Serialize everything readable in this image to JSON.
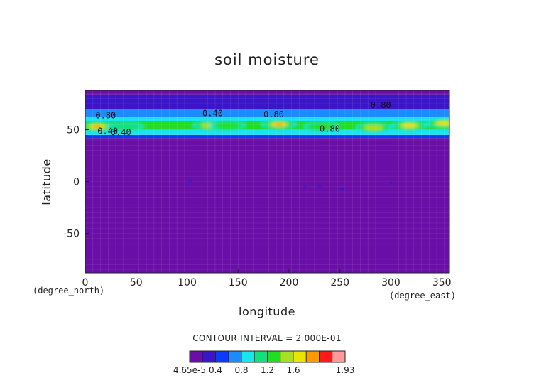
{
  "chart_data": {
    "type": "heatmap",
    "title": "soil moisture",
    "xlabel": "longitude",
    "ylabel": "latitude",
    "x_unit": "(degree_east)",
    "y_unit": "(degree_north)",
    "xlim": [
      0,
      357.5
    ],
    "ylim": [
      -88,
      88
    ],
    "x_ticks": [
      "0",
      "50",
      "100",
      "150",
      "200",
      "250",
      "300",
      "350"
    ],
    "y_ticks": [
      "50",
      "0",
      "-50"
    ],
    "contour_interval": "CONTOUR INTERVAL = 2.000E-01",
    "grid": false,
    "colorbar": {
      "labels": [
        "4.65e-5",
        "0.4",
        "0.8",
        "1.2",
        "1.6",
        "1.93"
      ],
      "min": 4.65e-05,
      "max": 1.93,
      "levels": [
        4.65e-05,
        0.2,
        0.4,
        0.6,
        0.8,
        1.0,
        1.2,
        1.4,
        1.6,
        1.8,
        1.93
      ],
      "colors": [
        "#6a0ea8",
        "#3a16c8",
        "#0a3bff",
        "#1a8cff",
        "#18e5ee",
        "#12e07a",
        "#22dd22",
        "#a6e020",
        "#e6e600",
        "#ff9a00",
        "#ff1a1a",
        "#ff9a9a"
      ],
      "position": "bottom"
    },
    "contour_labels": [
      "0.80",
      "0.40",
      "0.80",
      "0.80",
      "0.80",
      "0.40",
      "0.40"
    ],
    "bands": [
      {
        "lat_range": [
          -88,
          42
        ],
        "value": 0.0
      },
      {
        "lat_range": [
          42,
          45
        ],
        "value": 0.5
      },
      {
        "lat_range": [
          45,
          50
        ],
        "value": 0.8
      },
      {
        "lat_range": [
          50,
          58
        ],
        "value": 1.2
      },
      {
        "lat_range": [
          58,
          62
        ],
        "value": 0.8
      },
      {
        "lat_range": [
          62,
          70
        ],
        "value": 0.6
      },
      {
        "lat_range": [
          70,
          84
        ],
        "value": 0.3
      },
      {
        "lat_range": [
          84,
          88
        ],
        "value": 0.1
      }
    ],
    "hotspots": [
      {
        "lon": 12,
        "lat": 53,
        "value": 1.9
      },
      {
        "lon": 40,
        "lat": 53,
        "value": 1.1
      },
      {
        "lon": 123,
        "lat": 54,
        "value": 1.4
      },
      {
        "lon": 140,
        "lat": 54,
        "value": 1.2
      },
      {
        "lon": 190,
        "lat": 55,
        "value": 1.8
      },
      {
        "lon": 232,
        "lat": 53,
        "value": 1.2
      },
      {
        "lon": 283,
        "lat": 52,
        "value": 1.4
      },
      {
        "lon": 318,
        "lat": 54,
        "value": 1.6
      },
      {
        "lon": 352,
        "lat": 56,
        "value": 1.7
      }
    ],
    "small_spots": [
      {
        "lon": 103,
        "lat": 0,
        "value": 0.2
      },
      {
        "lon": 216,
        "lat": -5,
        "value": 0.2
      },
      {
        "lon": 230,
        "lat": -5,
        "value": 0.2
      },
      {
        "lon": 252,
        "lat": -7,
        "value": 0.2
      },
      {
        "lon": 300,
        "lat": -1,
        "value": 0.2
      }
    ]
  }
}
